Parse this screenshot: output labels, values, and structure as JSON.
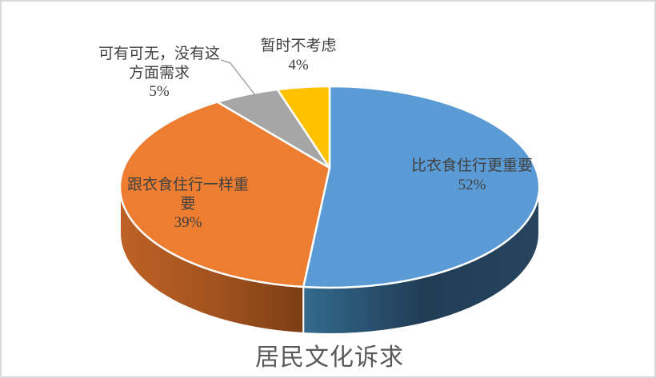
{
  "chart_data": {
    "type": "pie",
    "style": "3d",
    "title": "居民文化诉求",
    "legend": "none",
    "data_label_format": "category name + percentage",
    "start_angle_deg": 0,
    "direction": "clockwise",
    "label_color": "#404040",
    "title_color": "#595959",
    "divider_color": "#FFFFFF",
    "leader_line_color": "#A6A6A6",
    "frame_border_color": "#D9D9D9",
    "slices": [
      {
        "label": "比衣食住行更重要",
        "value": 52,
        "pct": "52%",
        "color": "#5B9BD5",
        "side_colors": [
          "#336A8E",
          "#213D56",
          "#26445E"
        ]
      },
      {
        "label": "跟衣食住行一样重要",
        "value": 39,
        "pct": "39%",
        "color": "#ED7D31",
        "side_colors": [
          "#BE6126",
          "#A35320",
          "#7C3E14"
        ]
      },
      {
        "label": "可有可无，没有这方面需求",
        "value": 5,
        "pct": "5%",
        "color": "#A6A6A6",
        "side_colors": null
      },
      {
        "label": "暂时不考虑",
        "value": 4,
        "pct": "4%",
        "color": "#FFC000",
        "side_colors": null
      }
    ]
  }
}
